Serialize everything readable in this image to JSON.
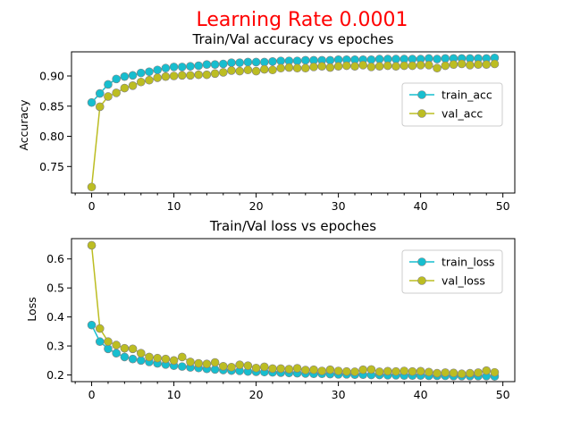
{
  "suptitle": "Learning Rate 0.0001",
  "colors": {
    "train": "#17becf",
    "val": "#bcbd22",
    "suptitle": "#ff0000"
  },
  "chart_data": [
    {
      "type": "line",
      "title": "Train/Val accuracy vs epoches",
      "xlabel": "",
      "ylabel": "Accuracy",
      "xlim": [
        -2.45,
        51.45
      ],
      "ylim": [
        0.706,
        0.94
      ],
      "xticks": [
        0,
        10,
        20,
        30,
        40,
        50
      ],
      "xtick_labels": [
        "0",
        "10",
        "20",
        "30",
        "40",
        "50"
      ],
      "yticks": [
        0.75,
        0.8,
        0.85,
        0.9
      ],
      "ytick_labels": [
        "0.75",
        "0.80",
        "0.85",
        "0.90"
      ],
      "legend_position": "center-right",
      "grid": false,
      "x": [
        0,
        1,
        2,
        3,
        4,
        5,
        6,
        7,
        8,
        9,
        10,
        11,
        12,
        13,
        14,
        15,
        16,
        17,
        18,
        19,
        20,
        21,
        22,
        23,
        24,
        25,
        26,
        27,
        28,
        29,
        30,
        31,
        32,
        33,
        34,
        35,
        36,
        37,
        38,
        39,
        40,
        41,
        42,
        43,
        44,
        45,
        46,
        47,
        48,
        49
      ],
      "series": [
        {
          "name": "train_acc",
          "color": "#17becf",
          "values": [
            0.856,
            0.871,
            0.886,
            0.895,
            0.899,
            0.901,
            0.905,
            0.907,
            0.91,
            0.913,
            0.915,
            0.915,
            0.916,
            0.917,
            0.919,
            0.919,
            0.92,
            0.922,
            0.922,
            0.923,
            0.923,
            0.923,
            0.924,
            0.925,
            0.925,
            0.925,
            0.926,
            0.926,
            0.926,
            0.926,
            0.927,
            0.927,
            0.927,
            0.927,
            0.927,
            0.928,
            0.928,
            0.928,
            0.928,
            0.928,
            0.928,
            0.929,
            0.928,
            0.929,
            0.929,
            0.929,
            0.929,
            0.929,
            0.929,
            0.93
          ]
        },
        {
          "name": "val_acc",
          "color": "#bcbd22",
          "values": [
            0.716,
            0.849,
            0.866,
            0.872,
            0.88,
            0.884,
            0.89,
            0.893,
            0.897,
            0.899,
            0.9,
            0.901,
            0.901,
            0.902,
            0.902,
            0.904,
            0.906,
            0.909,
            0.908,
            0.91,
            0.908,
            0.911,
            0.91,
            0.913,
            0.914,
            0.913,
            0.913,
            0.915,
            0.916,
            0.914,
            0.916,
            0.917,
            0.916,
            0.918,
            0.915,
            0.916,
            0.917,
            0.916,
            0.917,
            0.917,
            0.918,
            0.918,
            0.913,
            0.917,
            0.919,
            0.92,
            0.918,
            0.919,
            0.919,
            0.92
          ]
        }
      ]
    },
    {
      "type": "line",
      "title": "Train/Val loss vs epoches",
      "xlabel": "",
      "ylabel": "Loss",
      "xlim": [
        -2.45,
        51.45
      ],
      "ylim": [
        0.177,
        0.67
      ],
      "xticks": [
        0,
        10,
        20,
        30,
        40,
        50
      ],
      "xtick_labels": [
        "0",
        "10",
        "20",
        "30",
        "40",
        "50"
      ],
      "yticks": [
        0.2,
        0.3,
        0.4,
        0.5,
        0.6
      ],
      "ytick_labels": [
        "0.2",
        "0.3",
        "0.4",
        "0.5",
        "0.6"
      ],
      "legend_position": "upper-right",
      "grid": false,
      "x": [
        0,
        1,
        2,
        3,
        4,
        5,
        6,
        7,
        8,
        9,
        10,
        11,
        12,
        13,
        14,
        15,
        16,
        17,
        18,
        19,
        20,
        21,
        22,
        23,
        24,
        25,
        26,
        27,
        28,
        29,
        30,
        31,
        32,
        33,
        34,
        35,
        36,
        37,
        38,
        39,
        40,
        41,
        42,
        43,
        44,
        45,
        46,
        47,
        48,
        49
      ],
      "series": [
        {
          "name": "train_loss",
          "color": "#17becf",
          "values": [
            0.372,
            0.315,
            0.29,
            0.275,
            0.262,
            0.255,
            0.25,
            0.245,
            0.24,
            0.236,
            0.232,
            0.229,
            0.226,
            0.224,
            0.221,
            0.219,
            0.217,
            0.215,
            0.214,
            0.212,
            0.211,
            0.21,
            0.209,
            0.208,
            0.207,
            0.206,
            0.205,
            0.204,
            0.204,
            0.203,
            0.202,
            0.202,
            0.201,
            0.201,
            0.2,
            0.2,
            0.199,
            0.199,
            0.198,
            0.198,
            0.198,
            0.197,
            0.197,
            0.197,
            0.196,
            0.196,
            0.196,
            0.196,
            0.196,
            0.195
          ]
        },
        {
          "name": "val_loss",
          "color": "#bcbd22",
          "values": [
            0.647,
            0.36,
            0.315,
            0.303,
            0.292,
            0.29,
            0.275,
            0.262,
            0.258,
            0.255,
            0.25,
            0.262,
            0.245,
            0.24,
            0.238,
            0.243,
            0.23,
            0.227,
            0.235,
            0.232,
            0.224,
            0.228,
            0.222,
            0.222,
            0.22,
            0.223,
            0.217,
            0.218,
            0.214,
            0.218,
            0.214,
            0.212,
            0.211,
            0.218,
            0.219,
            0.211,
            0.213,
            0.212,
            0.214,
            0.212,
            0.213,
            0.21,
            0.206,
            0.208,
            0.207,
            0.204,
            0.206,
            0.208,
            0.215,
            0.209
          ]
        }
      ]
    }
  ]
}
